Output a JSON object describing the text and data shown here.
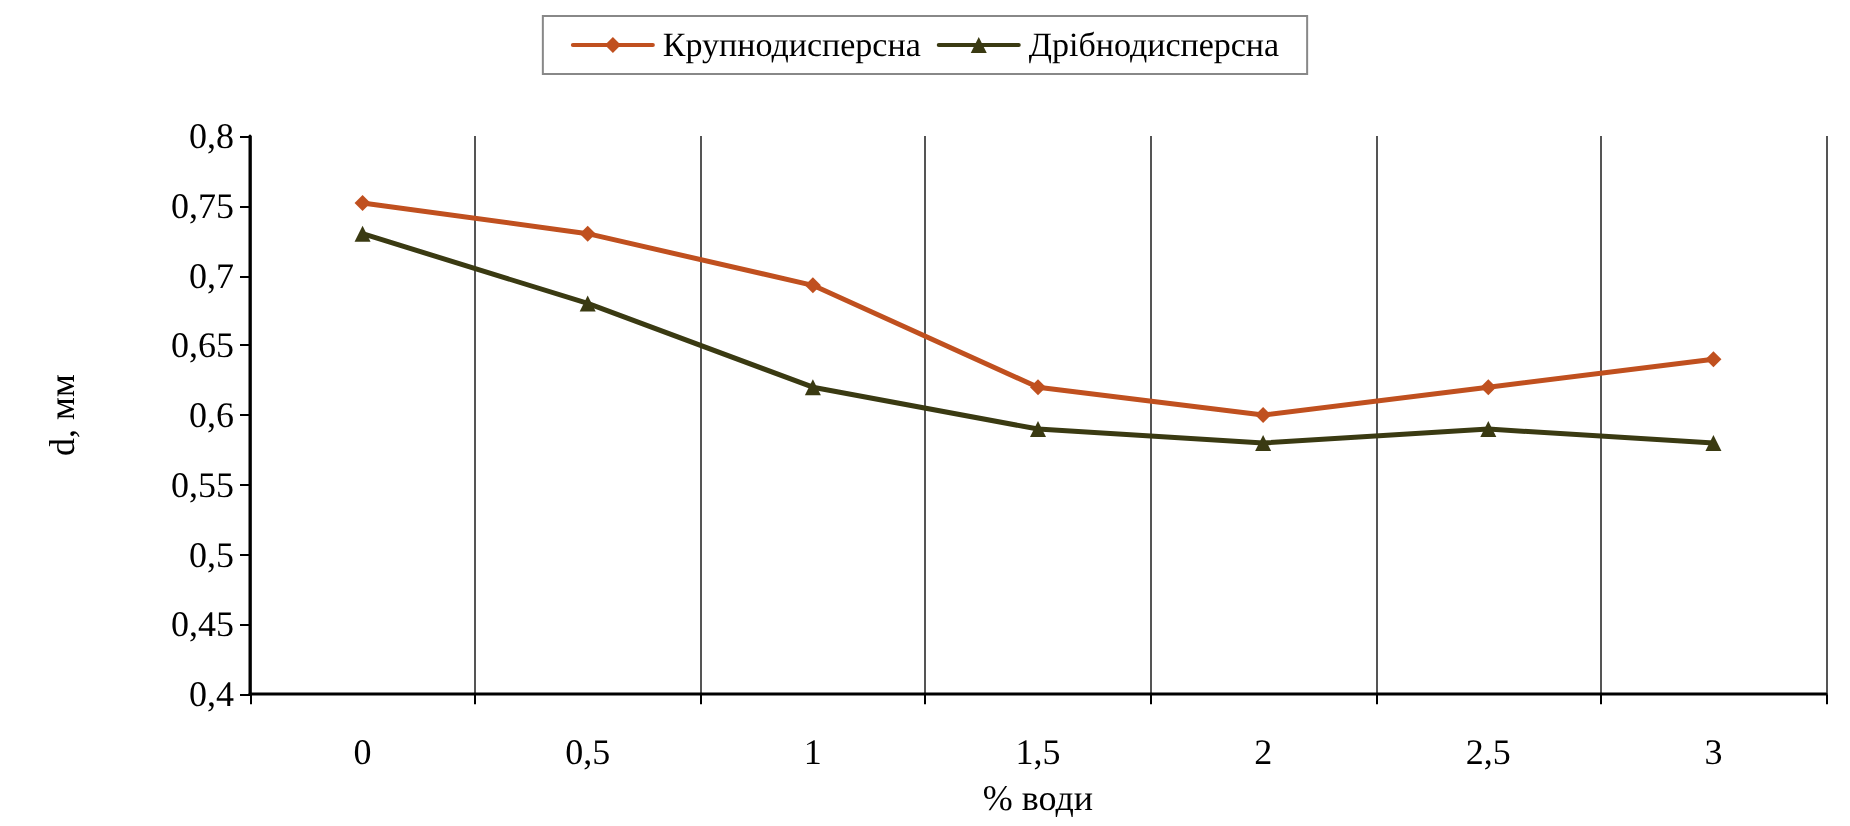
{
  "chart_data": {
    "type": "line",
    "xlabel": "% води",
    "ylabel": "d, мм",
    "categories": [
      "0",
      "0,5",
      "1",
      "1,5",
      "2",
      "2,5",
      "3"
    ],
    "series": [
      {
        "name": "Крупнодисперсна",
        "color": "#c0501f",
        "marker": "diamond",
        "values": [
          0.752,
          0.73,
          0.693,
          0.62,
          0.6,
          0.62,
          0.64
        ]
      },
      {
        "name": "Дрібнодисперсна",
        "color": "#3a3a12",
        "marker": "triangle",
        "values": [
          0.73,
          0.68,
          0.62,
          0.59,
          0.58,
          0.59,
          0.58
        ]
      }
    ],
    "ylim": [
      0.4,
      0.8
    ],
    "yticks": [
      {
        "value": 0.4,
        "label": "0,4"
      },
      {
        "value": 0.45,
        "label": "0,45"
      },
      {
        "value": 0.5,
        "label": "0,5"
      },
      {
        "value": 0.55,
        "label": "0,55"
      },
      {
        "value": 0.6,
        "label": "0,6"
      },
      {
        "value": 0.65,
        "label": "0,65"
      },
      {
        "value": 0.7,
        "label": "0,7"
      },
      {
        "value": 0.75,
        "label": "0,75"
      },
      {
        "value": 0.8,
        "label": "0,8"
      }
    ],
    "grid": "x",
    "legend": "top",
    "line_style": "solid"
  }
}
